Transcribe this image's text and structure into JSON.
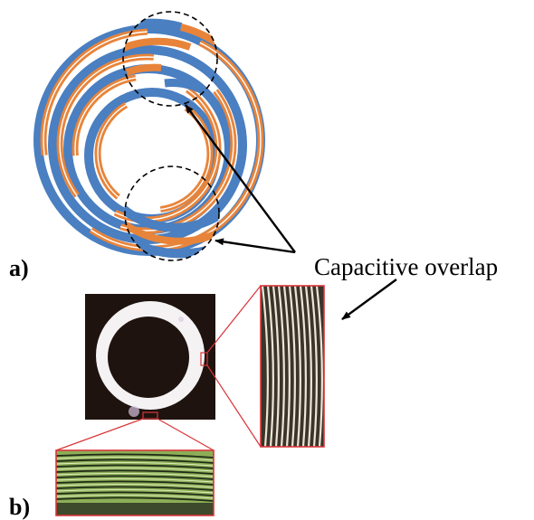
{
  "figure": {
    "panel_a_label": "a)",
    "panel_b_label": "b)",
    "annotation_text": "Capacitive overlap",
    "colors": {
      "blue_conductor": "#4a7fc1",
      "orange_conductor": "#e8843a",
      "chip_background": "#1e130e",
      "ring": "#f5f2f4",
      "zoom_border": "#d9353a",
      "zoom_bottom_fill": "#8cae57",
      "zoom_right_fill": "#3b3429"
    }
  }
}
